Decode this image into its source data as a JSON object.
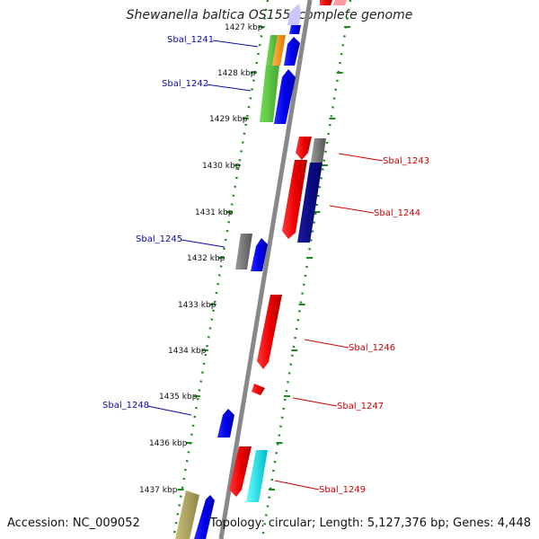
{
  "title": "Shewanella baltica OS155, complete genome",
  "footer": {
    "accession": "Accession: NC_009052",
    "summary": "Topology: circular; Length: 5,127,376 bp; Genes: 4,448"
  },
  "colors": {
    "backbone": "#888888",
    "tick": "#1f8a1f",
    "kbp_tick": "#1f8a1f",
    "left_label": "#0a0aa8",
    "right_label": "#cc0000"
  },
  "kbp_ticks": [
    "1427 kbp",
    "1428 kbp",
    "1429 kbp",
    "1430 kbp",
    "1431 kbp",
    "1432 kbp",
    "1433 kbp",
    "1434 kbp",
    "1435 kbp",
    "1436 kbp",
    "1437 kbp"
  ],
  "genes_left": [
    {
      "label": "Sbal_1241"
    },
    {
      "label": "Sbal_1242"
    },
    {
      "label": "Sbal_1245"
    },
    {
      "label": "Sbal_1248"
    }
  ],
  "genes_right": [
    {
      "label": "Sbal_1243"
    },
    {
      "label": "Sbal_1244"
    },
    {
      "label": "Sbal_1246"
    },
    {
      "label": "Sbal_1247"
    },
    {
      "label": "Sbal_1249"
    }
  ]
}
